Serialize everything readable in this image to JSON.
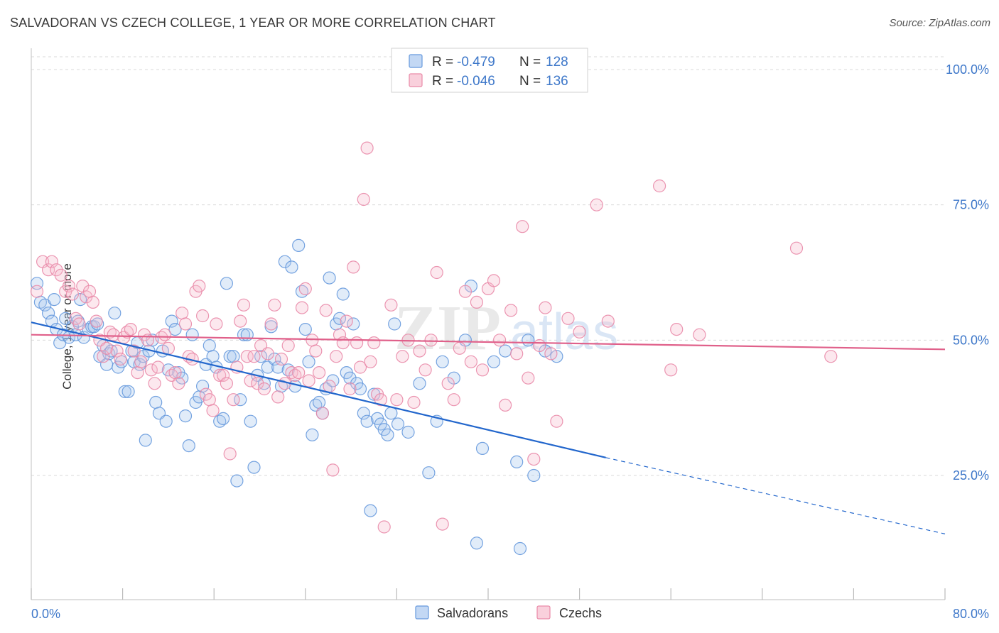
{
  "header": {
    "title": "SALVADORAN VS CZECH COLLEGE, 1 YEAR OR MORE CORRELATION CHART",
    "source": "Source: ZipAtlas.com"
  },
  "watermark": {
    "zip": "ZIP",
    "atlas": "atlas"
  },
  "colors": {
    "blue": "#6699dd",
    "blue_fill": "#a9c8ef",
    "blue_line": "#2266cc",
    "pink": "#e98aa8",
    "pink_fill": "#f6bccd",
    "pink_line": "#e0608a",
    "tick_label": "#3d77c9",
    "grid": "#d9d9d9"
  },
  "legend": {
    "rows": [
      {
        "r_label": "R =",
        "r_value": "-0.479",
        "n_label": "N =",
        "n_value": "128"
      },
      {
        "r_label": "R =",
        "r_value": "-0.046",
        "n_label": "N =",
        "n_value": "136"
      }
    ]
  },
  "chart_data": {
    "type": "scatter",
    "title": "SALVADORAN VS CZECH COLLEGE, 1 YEAR OR MORE CORRELATION CHART",
    "xlabel": "",
    "ylabel": "College, 1 year or more",
    "xlim": [
      0,
      80
    ],
    "ylim": [
      0,
      105
    ],
    "x_tick_labels": [
      "0.0%",
      "80.0%"
    ],
    "y_ticks": [
      25,
      50,
      75,
      100
    ],
    "y_tick_labels": [
      "25.0%",
      "50.0%",
      "75.0%",
      "100.0%"
    ],
    "grid": true,
    "legend_position": "top-center",
    "series": [
      {
        "name": "Salvadorans",
        "r": -0.479,
        "n": 128,
        "trend": {
          "x0": 0,
          "y0": 53.3,
          "x1": 50.3,
          "y1": 28.3,
          "dashed_to_x": 80,
          "dashed_to_y": 14.2
        },
        "points": [
          [
            0.5,
            60.5
          ],
          [
            0.8,
            57
          ],
          [
            1.2,
            56.5
          ],
          [
            1.5,
            55
          ],
          [
            1.8,
            53.5
          ],
          [
            2,
            57.5
          ],
          [
            2.2,
            52
          ],
          [
            2.5,
            49.5
          ],
          [
            2.8,
            51
          ],
          [
            3,
            54
          ],
          [
            3.3,
            50.5
          ],
          [
            3.6,
            52.5
          ],
          [
            3.9,
            51
          ],
          [
            4.1,
            53.5
          ],
          [
            4.3,
            57.5
          ],
          [
            4.6,
            50.5
          ],
          [
            5,
            52
          ],
          [
            5.3,
            52.5
          ],
          [
            5.5,
            52.5
          ],
          [
            5.8,
            53
          ],
          [
            6,
            47
          ],
          [
            6.3,
            49
          ],
          [
            6.6,
            45.5
          ],
          [
            6.8,
            47.5
          ],
          [
            7,
            48
          ],
          [
            7.3,
            55
          ],
          [
            7.6,
            45
          ],
          [
            7.9,
            46
          ],
          [
            8.2,
            40.5
          ],
          [
            8.5,
            40.5
          ],
          [
            8.8,
            48
          ],
          [
            9,
            46
          ],
          [
            9.3,
            49.5
          ],
          [
            9.5,
            45.5
          ],
          [
            9.8,
            47
          ],
          [
            10,
            31.5
          ],
          [
            10.3,
            48
          ],
          [
            10.6,
            50
          ],
          [
            10.9,
            38.5
          ],
          [
            11.2,
            36.5
          ],
          [
            11.5,
            48
          ],
          [
            11.8,
            35
          ],
          [
            12,
            44.5
          ],
          [
            12.3,
            53.5
          ],
          [
            12.6,
            52
          ],
          [
            12.9,
            44
          ],
          [
            13.2,
            43
          ],
          [
            13.5,
            36
          ],
          [
            13.8,
            30.5
          ],
          [
            14.1,
            51
          ],
          [
            14.4,
            38.5
          ],
          [
            14.7,
            39.5
          ],
          [
            15,
            41.5
          ],
          [
            15.3,
            45.5
          ],
          [
            15.6,
            49
          ],
          [
            15.9,
            47
          ],
          [
            16.2,
            45
          ],
          [
            16.5,
            35
          ],
          [
            16.8,
            35.5
          ],
          [
            17.1,
            60.5
          ],
          [
            17.4,
            47
          ],
          [
            17.7,
            47
          ],
          [
            18,
            24
          ],
          [
            18.3,
            39
          ],
          [
            18.6,
            51
          ],
          [
            18.9,
            51
          ],
          [
            19.2,
            35
          ],
          [
            19.5,
            26.5
          ],
          [
            19.8,
            43.5
          ],
          [
            20.1,
            47
          ],
          [
            20.4,
            42
          ],
          [
            20.7,
            45
          ],
          [
            21,
            52.5
          ],
          [
            21.3,
            46.5
          ],
          [
            21.6,
            45
          ],
          [
            21.9,
            41.5
          ],
          [
            22.2,
            64.5
          ],
          [
            22.5,
            44.5
          ],
          [
            22.8,
            63.5
          ],
          [
            23.1,
            41.5
          ],
          [
            23.4,
            67.5
          ],
          [
            23.7,
            59
          ],
          [
            24,
            52
          ],
          [
            24.3,
            46
          ],
          [
            24.6,
            32.5
          ],
          [
            24.9,
            38
          ],
          [
            25.2,
            38.5
          ],
          [
            25.5,
            36.5
          ],
          [
            25.8,
            41
          ],
          [
            26.1,
            61.5
          ],
          [
            26.4,
            42.5
          ],
          [
            26.7,
            53
          ],
          [
            27,
            54
          ],
          [
            27.3,
            58.5
          ],
          [
            27.6,
            44
          ],
          [
            27.9,
            43
          ],
          [
            28.2,
            53
          ],
          [
            28.5,
            42
          ],
          [
            28.8,
            41
          ],
          [
            29.1,
            36.5
          ],
          [
            29.4,
            35
          ],
          [
            29.7,
            18.5
          ],
          [
            30,
            40
          ],
          [
            30.3,
            35.5
          ],
          [
            30.6,
            34.5
          ],
          [
            30.9,
            33.5
          ],
          [
            31.2,
            32.5
          ],
          [
            31.5,
            36.5
          ],
          [
            31.8,
            53
          ],
          [
            32.1,
            34.5
          ],
          [
            33,
            33
          ],
          [
            34,
            42
          ],
          [
            34.8,
            25.5
          ],
          [
            35.5,
            35
          ],
          [
            36,
            46
          ],
          [
            37,
            43
          ],
          [
            38,
            50
          ],
          [
            38.5,
            60
          ],
          [
            39,
            12.5
          ],
          [
            39.5,
            30
          ],
          [
            40.5,
            46
          ],
          [
            41.5,
            48
          ],
          [
            42.5,
            27.5
          ],
          [
            42.8,
            11.5
          ],
          [
            43.5,
            50
          ],
          [
            44,
            25
          ],
          [
            45,
            48
          ],
          [
            46,
            47
          ]
        ]
      },
      {
        "name": "Czechs",
        "r": -0.046,
        "n": 136,
        "trend": {
          "x0": 0,
          "y0": 51.0,
          "x1": 80,
          "y1": 48.3
        },
        "points": [
          [
            0.5,
            59
          ],
          [
            1,
            64.5
          ],
          [
            1.5,
            63
          ],
          [
            1.8,
            64.5
          ],
          [
            2.2,
            63
          ],
          [
            2.6,
            62
          ],
          [
            3,
            59
          ],
          [
            3.3,
            60
          ],
          [
            3.6,
            58.5
          ],
          [
            3.9,
            54
          ],
          [
            4.2,
            53
          ],
          [
            4.5,
            60
          ],
          [
            4.8,
            58
          ],
          [
            5.1,
            59
          ],
          [
            5.4,
            57
          ],
          [
            5.7,
            53.5
          ],
          [
            6,
            50
          ],
          [
            6.3,
            47
          ],
          [
            6.6,
            48.5
          ],
          [
            6.9,
            51.5
          ],
          [
            7.2,
            51
          ],
          [
            7.5,
            48
          ],
          [
            7.8,
            46.5
          ],
          [
            8.1,
            50.5
          ],
          [
            8.4,
            51.5
          ],
          [
            8.7,
            52
          ],
          [
            9,
            48
          ],
          [
            9.3,
            44
          ],
          [
            9.6,
            46
          ],
          [
            9.9,
            51
          ],
          [
            10.2,
            50
          ],
          [
            10.5,
            44.5
          ],
          [
            10.8,
            42
          ],
          [
            11.1,
            45
          ],
          [
            11.4,
            50.5
          ],
          [
            11.7,
            51
          ],
          [
            12,
            48.5
          ],
          [
            12.3,
            43.5
          ],
          [
            12.6,
            44
          ],
          [
            12.9,
            42
          ],
          [
            13.2,
            55
          ],
          [
            13.5,
            53
          ],
          [
            13.8,
            47
          ],
          [
            14.1,
            46.5
          ],
          [
            14.4,
            59
          ],
          [
            14.7,
            60
          ],
          [
            15,
            54.5
          ],
          [
            15.3,
            40
          ],
          [
            15.6,
            39
          ],
          [
            15.9,
            37
          ],
          [
            16.2,
            53
          ],
          [
            16.5,
            43.5
          ],
          [
            16.8,
            43.5
          ],
          [
            17.1,
            42
          ],
          [
            17.4,
            29
          ],
          [
            17.7,
            39
          ],
          [
            18,
            45
          ],
          [
            18.3,
            53.5
          ],
          [
            18.6,
            56.5
          ],
          [
            18.9,
            47
          ],
          [
            19.2,
            42.5
          ],
          [
            19.5,
            47
          ],
          [
            19.8,
            42
          ],
          [
            20.1,
            49
          ],
          [
            20.4,
            41
          ],
          [
            20.7,
            47.5
          ],
          [
            21,
            53
          ],
          [
            21.3,
            56.5
          ],
          [
            21.6,
            39.5
          ],
          [
            21.9,
            46.5
          ],
          [
            22.2,
            42
          ],
          [
            22.5,
            49
          ],
          [
            22.8,
            44
          ],
          [
            23.1,
            43.5
          ],
          [
            23.4,
            44
          ],
          [
            23.7,
            56
          ],
          [
            24,
            59.5
          ],
          [
            24.3,
            42.5
          ],
          [
            24.6,
            50
          ],
          [
            24.9,
            48
          ],
          [
            25.2,
            44
          ],
          [
            25.5,
            36.5
          ],
          [
            25.8,
            55.5
          ],
          [
            26.1,
            41.5
          ],
          [
            26.4,
            26
          ],
          [
            26.7,
            47
          ],
          [
            27,
            51
          ],
          [
            27.3,
            49.5
          ],
          [
            27.6,
            53.5
          ],
          [
            27.9,
            41
          ],
          [
            28.2,
            63.5
          ],
          [
            28.5,
            49.5
          ],
          [
            28.8,
            45
          ],
          [
            29.1,
            76
          ],
          [
            29.4,
            85.5
          ],
          [
            29.7,
            46
          ],
          [
            30,
            49.5
          ],
          [
            30.3,
            40
          ],
          [
            30.6,
            39
          ],
          [
            30.9,
            15.5
          ],
          [
            31.5,
            56.5
          ],
          [
            32,
            39
          ],
          [
            32.5,
            47
          ],
          [
            33,
            50
          ],
          [
            33.5,
            38.5
          ],
          [
            34,
            48
          ],
          [
            34.5,
            44.5
          ],
          [
            35,
            50
          ],
          [
            35.5,
            62.5
          ],
          [
            36,
            16
          ],
          [
            36.5,
            42
          ],
          [
            37,
            39
          ],
          [
            37.5,
            48.5
          ],
          [
            38,
            59
          ],
          [
            38.5,
            46
          ],
          [
            39,
            57
          ],
          [
            39.5,
            44.5
          ],
          [
            40,
            59.5
          ],
          [
            40.5,
            61
          ],
          [
            41,
            50
          ],
          [
            41.5,
            38
          ],
          [
            42,
            55.5
          ],
          [
            42.5,
            47.5
          ],
          [
            43,
            71
          ],
          [
            43.5,
            43
          ],
          [
            44,
            28
          ],
          [
            44.5,
            49
          ],
          [
            45,
            56
          ],
          [
            45.5,
            47.5
          ],
          [
            46,
            35
          ],
          [
            47,
            54
          ],
          [
            48,
            51.5
          ],
          [
            49.5,
            75
          ],
          [
            50.5,
            53.5
          ],
          [
            55,
            78.5
          ],
          [
            56,
            44.5
          ],
          [
            56.5,
            52
          ],
          [
            67,
            67
          ],
          [
            58.5,
            51
          ],
          [
            70,
            47
          ]
        ]
      }
    ]
  },
  "bottom_legend": {
    "items": [
      "Salvadorans",
      "Czechs"
    ]
  }
}
